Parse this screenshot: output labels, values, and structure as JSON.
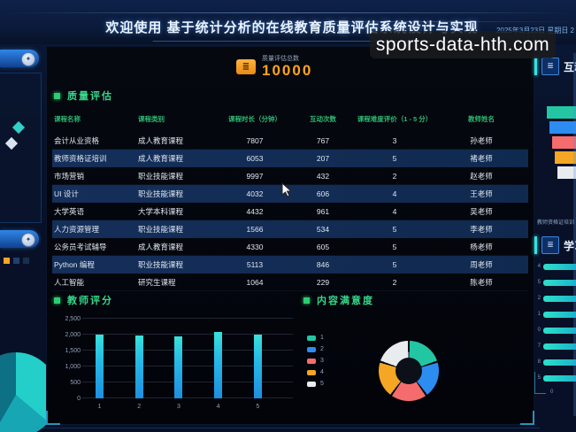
{
  "header": {
    "title": "欢迎使用 基于统计分析的在线教育质量评估系统设计与实现",
    "datetime": "2025年3月23日 星期日 2"
  },
  "watermark": {
    "text": "sports-data-hth.com"
  },
  "kpi": {
    "label": "质量评估总数",
    "value": "10000",
    "icon": "layers-icon"
  },
  "quality_section": {
    "title": "质量评估",
    "columns": [
      "课程名称",
      "课程类别",
      "课程时长（分钟）",
      "互动次数",
      "课程难度评价（1 - 5 分）",
      "教师姓名"
    ],
    "rows": [
      [
        "会计从业资格",
        "成人教育课程",
        "7807",
        "767",
        "3",
        "孙老师"
      ],
      [
        "教师资格证培训",
        "成人教育课程",
        "6053",
        "207",
        "5",
        "褚老师"
      ],
      [
        "市场营销",
        "职业技能课程",
        "9997",
        "432",
        "2",
        "赵老师"
      ],
      [
        "UI 设计",
        "职业技能课程",
        "4032",
        "606",
        "4",
        "王老师"
      ],
      [
        "大学英语",
        "大学本科课程",
        "4432",
        "961",
        "4",
        "吴老师"
      ],
      [
        "人力资源管理",
        "职业技能课程",
        "1566",
        "534",
        "5",
        "李老师"
      ],
      [
        "公务员考试辅导",
        "成人教育课程",
        "4330",
        "605",
        "5",
        "杨老师"
      ],
      [
        "Python 编程",
        "职业技能课程",
        "5113",
        "846",
        "5",
        "周老师"
      ],
      [
        "人工智能",
        "研究生课程",
        "1064",
        "229",
        "2",
        "陈老师"
      ]
    ]
  },
  "chart_data": [
    {
      "type": "bar",
      "title": "教师评分",
      "categories": [
        "1",
        "2",
        "3",
        "4",
        "5"
      ],
      "values": [
        2000,
        1985,
        1945,
        2080,
        2005
      ],
      "ylim": [
        0,
        2500
      ],
      "yticks": [
        0,
        500,
        1000,
        1500,
        2000,
        2500
      ],
      "ytick_labels": [
        "0",
        "500",
        "1,000",
        "1,500",
        "2,000",
        "2,500"
      ],
      "bar_color_top": "#38e2da",
      "bar_color_bottom": "#1e8fe0",
      "grid": true,
      "legend_position": "none"
    },
    {
      "type": "pie",
      "donut": true,
      "title": "内容满意度",
      "labels": [
        "1",
        "2",
        "3",
        "4",
        "5"
      ],
      "values": [
        20,
        20,
        20,
        20,
        20
      ],
      "colors": [
        "#23c6a2",
        "#2d8cf0",
        "#f56c6c",
        "#f5a623",
        "#e8ecef"
      ],
      "legend_position": "left"
    }
  ],
  "right_panels": {
    "interaction_panel": {
      "title": "互动",
      "funnel_colors": [
        "#23c6a2",
        "#2d8cf0",
        "#f56c6c",
        "#f5a623",
        "#e8ecef"
      ],
      "caption": "教师资格证培训"
    },
    "study_panel": {
      "title": "学习",
      "bar_labels": [
        "4",
        "5",
        "2",
        "1",
        "0",
        "7",
        "8",
        "5"
      ],
      "axis_label": "0"
    }
  },
  "ui_colors": {
    "accent_green": "#2ecc71",
    "accent_orange": "#ffa41b",
    "row_highlight": "#142f5a",
    "bar_cyan": "#27b9e6"
  }
}
